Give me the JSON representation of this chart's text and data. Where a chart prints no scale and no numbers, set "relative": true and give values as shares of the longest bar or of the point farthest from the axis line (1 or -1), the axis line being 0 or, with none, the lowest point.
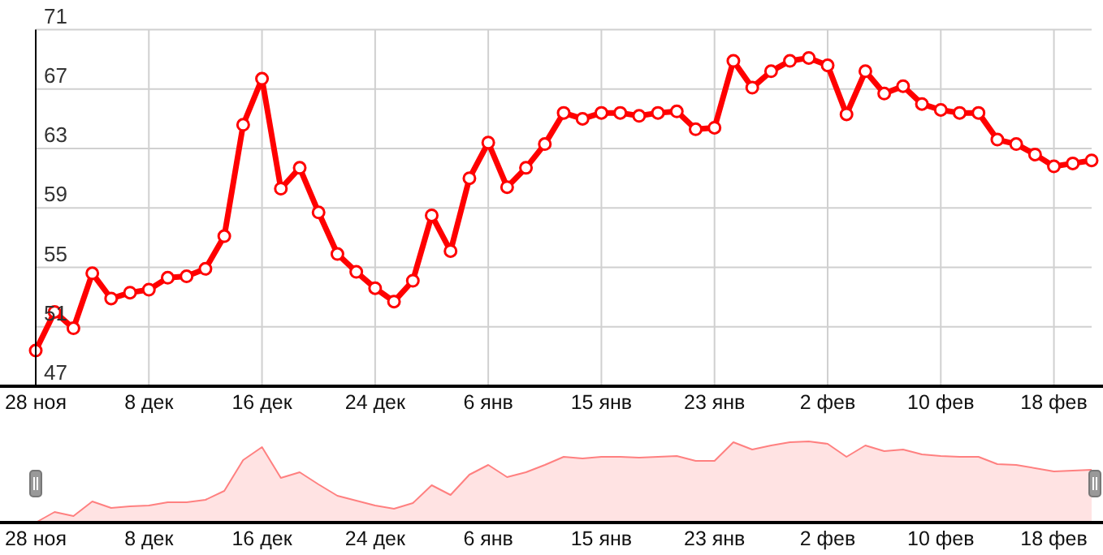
{
  "chart_data": [
    {
      "type": "line",
      "categories": [
        "28 ноя",
        null,
        null,
        null,
        null,
        null,
        "8 дек",
        null,
        null,
        null,
        null,
        null,
        "16 дек",
        null,
        null,
        null,
        null,
        null,
        "24 дек",
        null,
        null,
        null,
        null,
        null,
        "6 янв",
        null,
        null,
        null,
        null,
        null,
        "15 янв",
        null,
        null,
        null,
        null,
        null,
        "23 янв",
        null,
        null,
        null,
        null,
        null,
        "2 фев",
        null,
        null,
        null,
        null,
        null,
        "10 фев",
        null,
        null,
        null,
        null,
        null,
        "18 фев",
        null,
        null
      ],
      "series": [
        {
          "color": "#ff0000",
          "values": [
            49.4,
            52.0,
            50.9,
            54.6,
            52.9,
            53.3,
            53.5,
            54.3,
            54.4,
            54.9,
            57.1,
            64.6,
            67.7,
            60.3,
            61.7,
            58.7,
            55.9,
            54.7,
            53.6,
            52.7,
            54.1,
            58.5,
            56.1,
            61.0,
            63.4,
            60.4,
            61.7,
            63.3,
            65.4,
            65.0,
            65.4,
            65.4,
            65.2,
            65.4,
            65.5,
            64.3,
            64.4,
            68.9,
            67.1,
            68.2,
            68.9,
            69.1,
            68.6,
            65.3,
            68.2,
            66.7,
            67.2,
            66.0,
            65.6,
            65.4,
            65.4,
            63.6,
            63.3,
            62.6,
            61.8,
            62.0,
            62.2
          ]
        }
      ],
      "ylim": [
        47,
        71
      ],
      "yticks": [
        47,
        51,
        55,
        59,
        63,
        67,
        71
      ],
      "grid": true,
      "marker": "circle",
      "line_style": "solid"
    },
    {
      "type": "area",
      "categories": [
        "28 ноя",
        null,
        null,
        null,
        null,
        null,
        "8 дек",
        null,
        null,
        null,
        null,
        null,
        "16 дек",
        null,
        null,
        null,
        null,
        null,
        "24 дек",
        null,
        null,
        null,
        null,
        null,
        "6 янв",
        null,
        null,
        null,
        null,
        null,
        "15 янв",
        null,
        null,
        null,
        null,
        null,
        "23 янв",
        null,
        null,
        null,
        null,
        null,
        "2 фев",
        null,
        null,
        null,
        null,
        null,
        "10 фев",
        null,
        null,
        null,
        null,
        null,
        "18 фев",
        null,
        null
      ],
      "series": [
        {
          "color": "#ff8080",
          "values": [
            0,
            0.13,
            0.08,
            0.26,
            0.18,
            0.2,
            0.21,
            0.25,
            0.25,
            0.28,
            0.39,
            0.77,
            0.93,
            0.55,
            0.62,
            0.47,
            0.33,
            0.27,
            0.21,
            0.17,
            0.24,
            0.46,
            0.34,
            0.59,
            0.71,
            0.56,
            0.62,
            0.71,
            0.81,
            0.79,
            0.81,
            0.81,
            0.8,
            0.81,
            0.82,
            0.76,
            0.76,
            0.99,
            0.9,
            0.95,
            0.99,
            1,
            0.97,
            0.81,
            0.95,
            0.88,
            0.9,
            0.84,
            0.82,
            0.81,
            0.81,
            0.72,
            0.71,
            0.67,
            0.63,
            0.64,
            0.65
          ]
        }
      ],
      "relative": true,
      "grid": false,
      "marker": "none"
    }
  ]
}
